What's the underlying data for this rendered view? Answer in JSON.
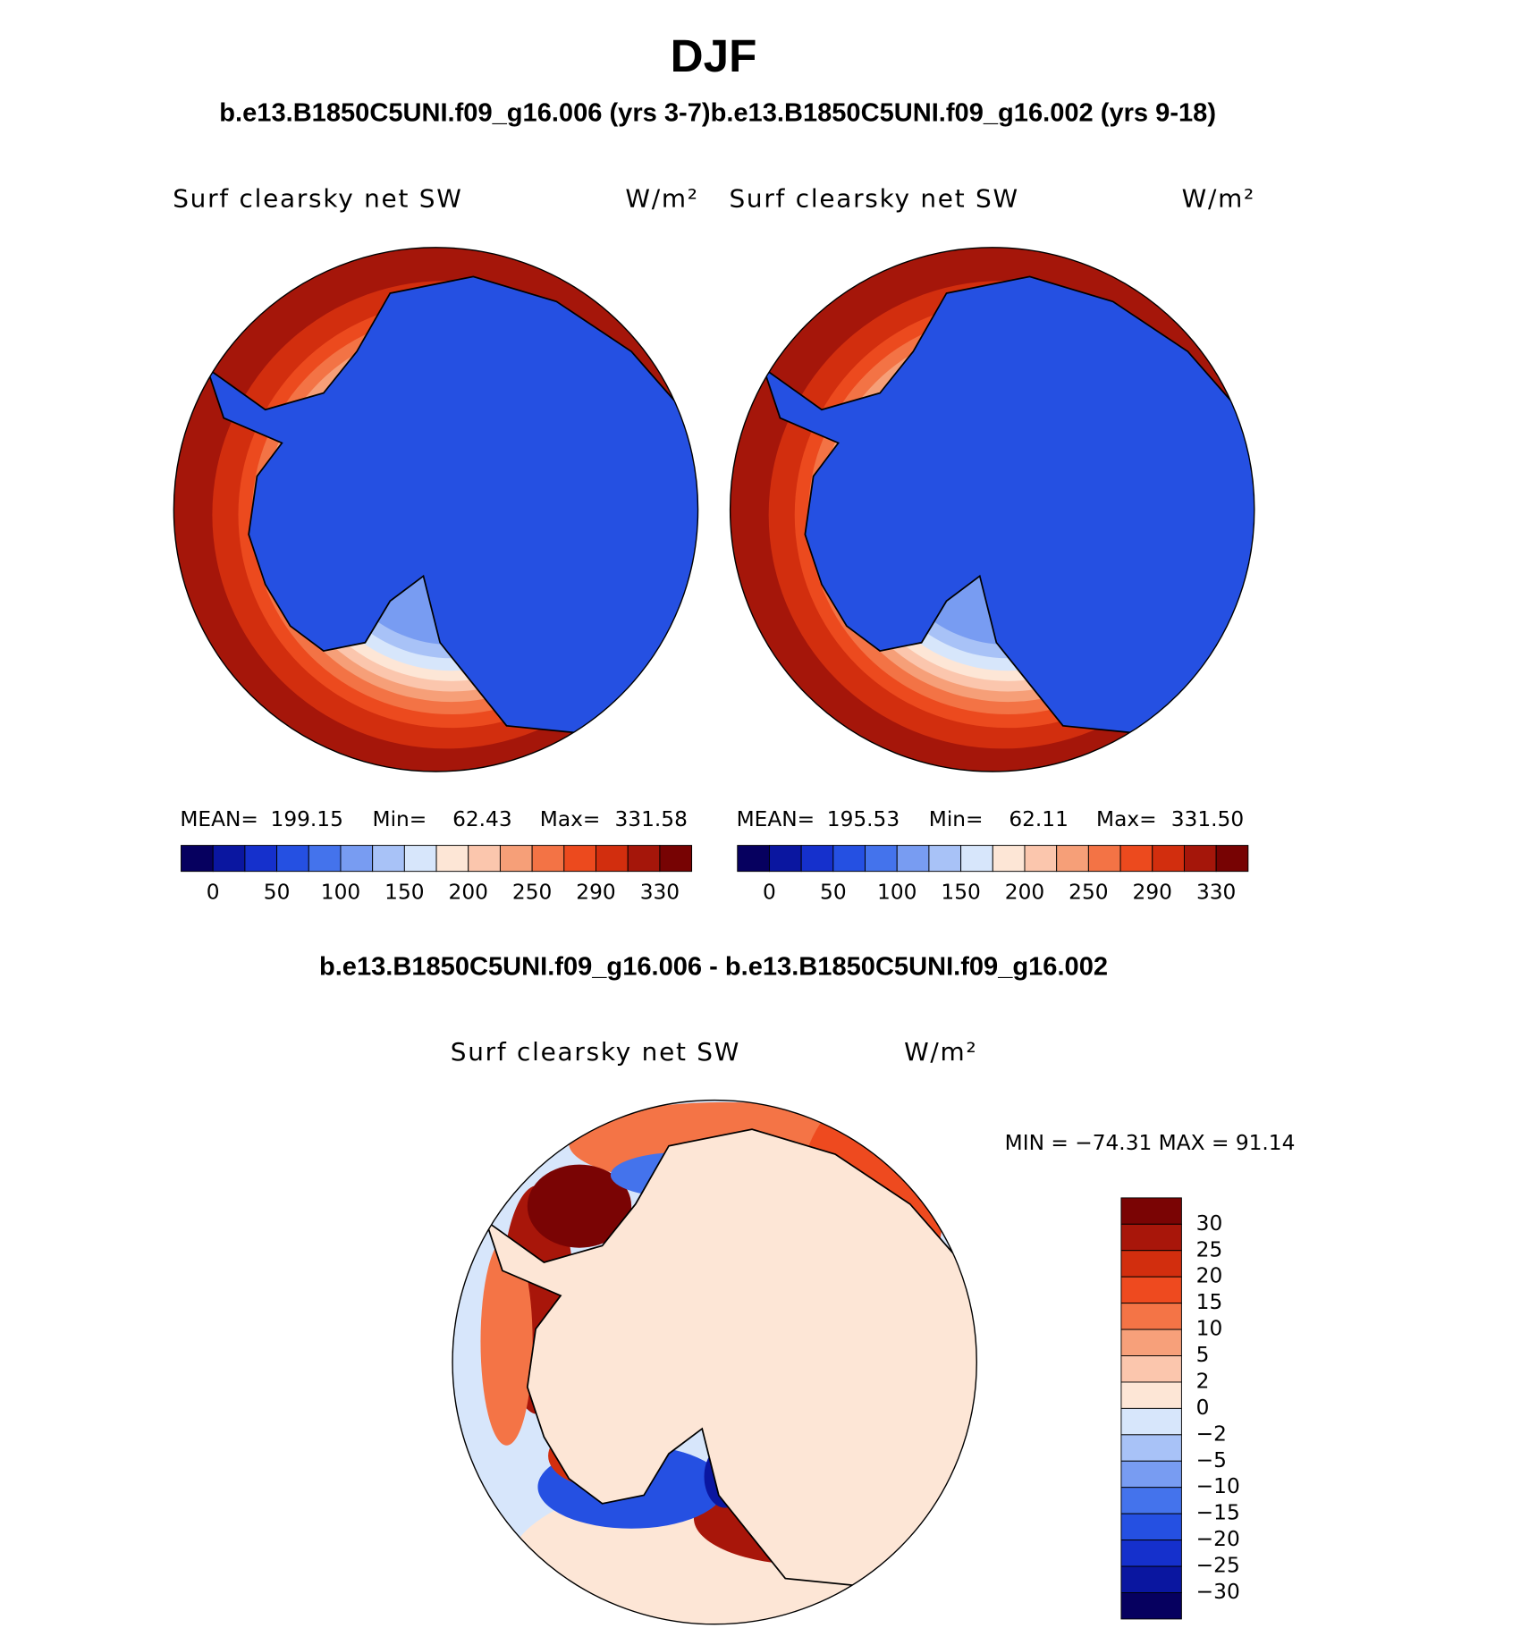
{
  "title": "DJF",
  "subtitle": "b.e13.B1850C5UNI.f09_g16.006 (yrs 3-7)b.e13.B1850C5UNI.f09_g16.002 (yrs 9-18)",
  "panels": [
    {
      "variable": "Surf clearsky net SW",
      "units": "W/m²",
      "stats": [
        "MEAN=",
        "199.15",
        "Min=",
        "62.43",
        "Max=",
        "331.58"
      ]
    },
    {
      "variable": "Surf clearsky net SW",
      "units": "W/m²",
      "stats": [
        "MEAN=",
        "195.53",
        "Min=",
        "62.11",
        "Max=",
        "331.50"
      ]
    }
  ],
  "colorbar": {
    "labels": [
      "0",
      "50",
      "100",
      "150",
      "200",
      "250",
      "290",
      "330"
    ],
    "colors": [
      "#06005f",
      "#0a16a0",
      "#1530cc",
      "#2550e2",
      "#4473ec",
      "#789cf2",
      "#a8c2f7",
      "#d7e6fb",
      "#fde6d6",
      "#fbc6ad",
      "#f69f78",
      "#f37345",
      "#ec4a1e",
      "#d22e0e",
      "#a5160a",
      "#770303"
    ]
  },
  "difference": {
    "title": "b.e13.B1850C5UNI.f09_g16.006 - b.e13.B1850C5UNI.f09_g16.002",
    "variable": "Surf clearsky net SW",
    "units": "W/m²",
    "stats": "MIN = −74.31 MAX =  91.14",
    "colorbar": {
      "labels": [
        "30",
        "25",
        "20",
        "15",
        "10",
        "5",
        "2",
        "0",
        "−2",
        "−5",
        "−10",
        "−15",
        "−20",
        "−25",
        "−30"
      ],
      "colors": [
        "#7a0404",
        "#a8160a",
        "#d22e0e",
        "#ee4a1f",
        "#f47446",
        "#f7a07a",
        "#fbc6ad",
        "#fde6d6",
        "#d7e6fb",
        "#a8c2f7",
        "#789cf2",
        "#4473ec",
        "#2550e2",
        "#1530cc",
        "#0a16a0",
        "#06005f"
      ]
    }
  }
}
